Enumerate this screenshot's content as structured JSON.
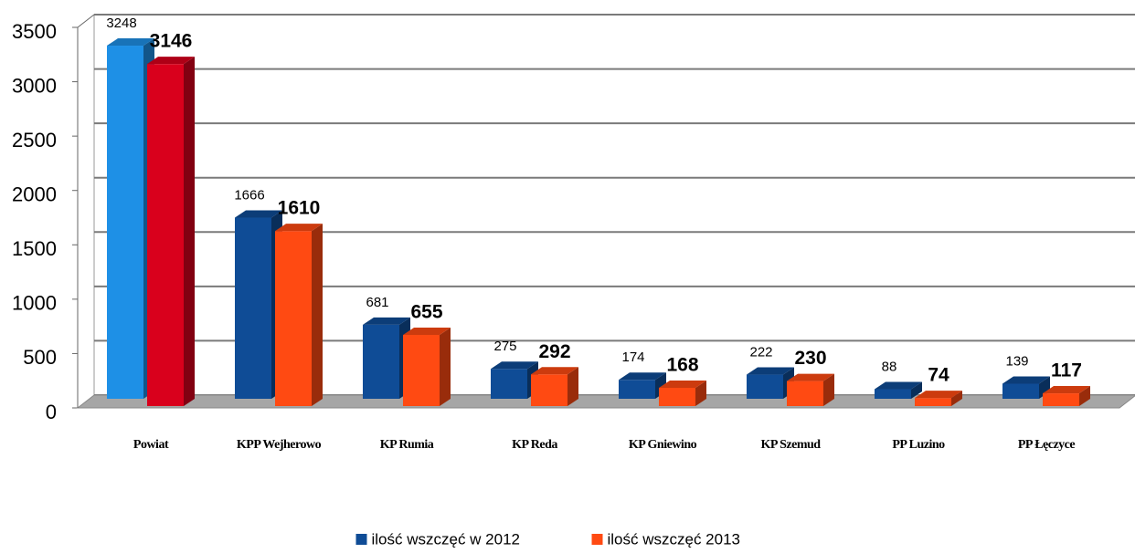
{
  "chart_data": {
    "type": "bar3d",
    "categories": [
      "Powiat",
      "KPP Wejherowo",
      "KP Rumia",
      "KP Reda",
      "KP Gniewino",
      "KP Szemud",
      "PP Luzino",
      "PP Łęczyce"
    ],
    "series": [
      {
        "name": "ilość wszczęć w 2012",
        "color": "#0f4c96",
        "colors": [
          "#1e90e6",
          "#0f4c96",
          "#0f4c96",
          "#0f4c96",
          "#0f4c96",
          "#0f4c96",
          "#0f4c96",
          "#0f4c96"
        ],
        "values": [
          3248,
          1666,
          681,
          275,
          174,
          222,
          88,
          139
        ]
      },
      {
        "name": "ilość wszczęć 2013",
        "color": "#ff4a12",
        "colors": [
          "#d9001c",
          "#ff4a12",
          "#ff4a12",
          "#ff4a12",
          "#ff4a12",
          "#ff4a12",
          "#ff4a12",
          "#ff4a12"
        ],
        "values": [
          3146,
          1610,
          655,
          292,
          168,
          230,
          74,
          117
        ]
      }
    ],
    "ylim": [
      0,
      3500
    ],
    "yticks": [
      0,
      500,
      1000,
      1500,
      2000,
      2500,
      3000,
      3500
    ],
    "grid": true,
    "legend": "bottom"
  }
}
